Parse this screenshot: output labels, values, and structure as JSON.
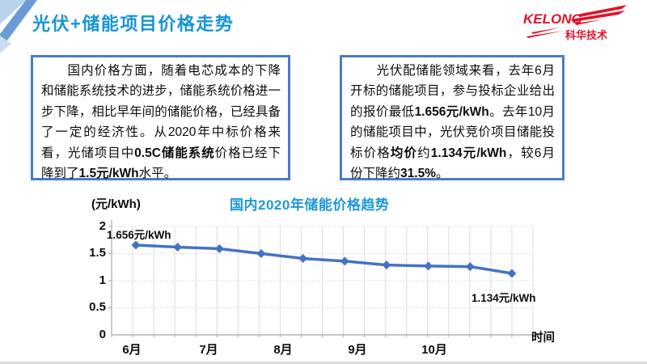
{
  "header": {
    "title": "光伏+储能项目价格走势"
  },
  "logo": {
    "brand": "KELONG",
    "name": "科华技术",
    "color": "#e01428"
  },
  "left_box": {
    "segments": [
      {
        "t": "国内价格方面，随着电芯成本的下降和储能系统技术的进步，储能系统价格进一步下降，相比早年间的储能价格，已经具备了一定的经济性。从2020年中标价格来看，光储项目中",
        "b": false
      },
      {
        "t": "0.5C储能系统",
        "b": true
      },
      {
        "t": "价格已经下降到了",
        "b": false
      },
      {
        "t": "1.5元/kWh",
        "b": true
      },
      {
        "t": "水平。",
        "b": false
      }
    ]
  },
  "right_box": {
    "segments": [
      {
        "t": "光伏配储能领域来看，去年6月开标的储能项目，参与投标企业给出的报价最低",
        "b": false
      },
      {
        "t": "1.656元/kWh",
        "b": true
      },
      {
        "t": "。去年10月的储能项目中，光伏竞价项目储能投标价格",
        "b": false
      },
      {
        "t": "均价",
        "b": true
      },
      {
        "t": "约",
        "b": false
      },
      {
        "t": "1.134元/kWh",
        "b": true
      },
      {
        "t": "，较6月份下降约",
        "b": false
      },
      {
        "t": "31.5%",
        "b": true
      },
      {
        "t": "。",
        "b": false
      }
    ]
  },
  "chart_data": {
    "type": "line",
    "title": "国内2020年储能价格趋势",
    "ylabel": "(元/kWh)",
    "xlabel": "时间",
    "x_tick_labels": [
      "6月",
      "7月",
      "8月",
      "9月",
      "10月"
    ],
    "y_tick_labels": [
      "2",
      "1.5",
      "1",
      "0.5",
      "0"
    ],
    "ylim": [
      0,
      2
    ],
    "values": [
      1.656,
      1.62,
      1.59,
      1.5,
      1.41,
      1.36,
      1.29,
      1.27,
      1.26,
      1.134
    ],
    "annotations": [
      "1.656元/kWh",
      "1.134元/kWh"
    ],
    "line_color": "#4472C4",
    "marker": "diamond",
    "grid": true,
    "legend_position": "none"
  }
}
